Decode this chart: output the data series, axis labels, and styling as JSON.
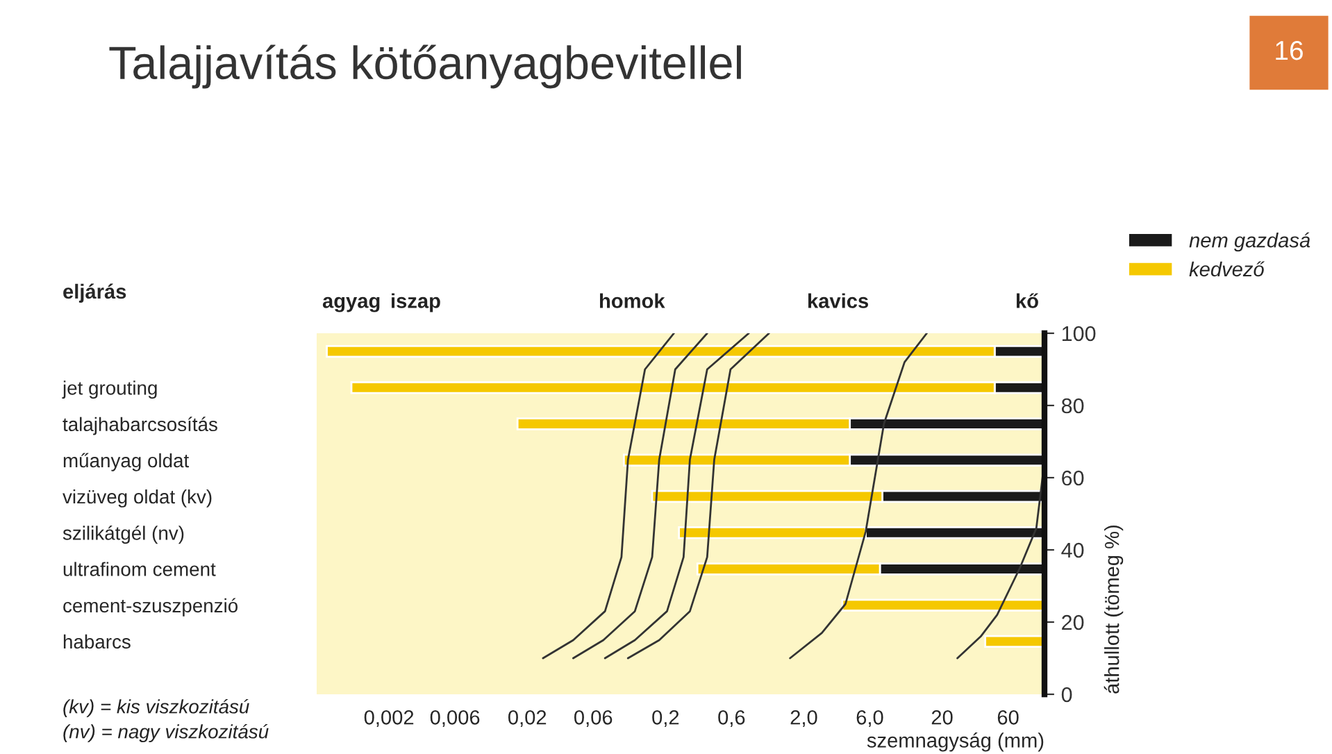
{
  "chart_data": [
    {
      "type": "bar",
      "orientation": "horizontal",
      "title": "Talajjavítás kötőanyagbevitellel",
      "xlabel": "szemnagyság (mm)",
      "ylabel": "eljárás",
      "categories": [
        null,
        "jet grouting",
        "talajhabarcsosítás",
        "műanyag oldat",
        "vizüveg oldat (kv)",
        "szilikátgél (nv)",
        "ultrafinom cement",
        "cement-szuszpenzió",
        "habarcs"
      ],
      "series": [
        {
          "name": "nem gazdasá",
          "color": "#1a1a1a",
          "base": [
            48,
            48,
            4.3,
            4.3,
            7.4,
            5.6,
            7.1,
            null,
            null
          ],
          "values": [
            62,
            62,
            105.7,
            105.7,
            102.6,
            104.4,
            102.9,
            null,
            null
          ]
        },
        {
          "name": "kedvező",
          "color": "#f5c800",
          "base": [
            0.00071,
            0.00107,
            0.017,
            0.1,
            0.16,
            0.25,
            0.34,
            3.8,
            41
          ],
          "values": [
            47.9993,
            47.9989,
            4.283,
            4.2,
            7.24,
            5.35,
            6.76,
            106.2,
            69
          ]
        }
      ],
      "log": "x",
      "xlim": [
        0.0006,
        110
      ],
      "xticks": [
        {
          "value": 0.002,
          "label": "0,002"
        },
        {
          "value": 0.006,
          "label": "0,006"
        },
        {
          "value": 0.02,
          "label": "0,02"
        },
        {
          "value": 0.06,
          "label": "0,06"
        },
        {
          "value": 0.2,
          "label": "0,2"
        },
        {
          "value": 0.6,
          "label": "0,6"
        },
        {
          "value": 2,
          "label": "2,0"
        },
        {
          "value": 6,
          "label": "6,0"
        },
        {
          "value": 20,
          "label": "20"
        },
        {
          "value": 60,
          "label": "60"
        }
      ],
      "legend": "top right",
      "annotations": [
        "16",
        "(kv) = kis viszkozitású",
        "(nv) = nagy viszkozitású",
        "agyag",
        "iszap",
        "homok",
        "kavics",
        "kő"
      ]
    },
    {
      "type": "line",
      "ylabel": "áthullott (tömeg %)",
      "log": "x",
      "xlim": [
        0.0006,
        110
      ],
      "ylim": [
        0,
        100
      ],
      "yticks": [
        0,
        20,
        40,
        60,
        80,
        100
      ],
      "tick_labels": "y",
      "series": [
        {
          "color": "#333333",
          "x": [
            0.026,
            0.043,
            0.073,
            0.096,
            0.107,
            0.142,
            0.23
          ],
          "values": [
            10,
            15,
            23,
            38,
            65,
            90,
            100
          ]
        },
        {
          "color": "#333333",
          "x": [
            0.043,
            0.071,
            0.12,
            0.16,
            0.18,
            0.235,
            0.4
          ],
          "values": [
            10,
            15,
            23,
            38,
            65,
            90,
            100
          ]
        },
        {
          "color": "#333333",
          "x": [
            0.073,
            0.12,
            0.205,
            0.27,
            0.3,
            0.4,
            0.8
          ],
          "values": [
            10,
            15,
            23,
            38,
            65,
            90,
            100
          ]
        },
        {
          "color": "#333333",
          "x": [
            0.107,
            0.18,
            0.3,
            0.4,
            0.45,
            0.59,
            1.12
          ],
          "values": [
            10,
            15,
            23,
            38,
            65,
            90,
            100
          ]
        },
        {
          "color": "#333333",
          "x": [
            1.59,
            2.7,
            4.0,
            5.6,
            7.6,
            10.7,
            15.5
          ],
          "values": [
            10,
            17,
            25,
            45,
            75,
            92,
            100
          ]
        },
        {
          "color": "#333333",
          "x": [
            25.8,
            38,
            50,
            73,
            96,
            108
          ],
          "values": [
            10,
            16,
            22,
            35,
            46,
            62
          ]
        }
      ]
    }
  ]
}
